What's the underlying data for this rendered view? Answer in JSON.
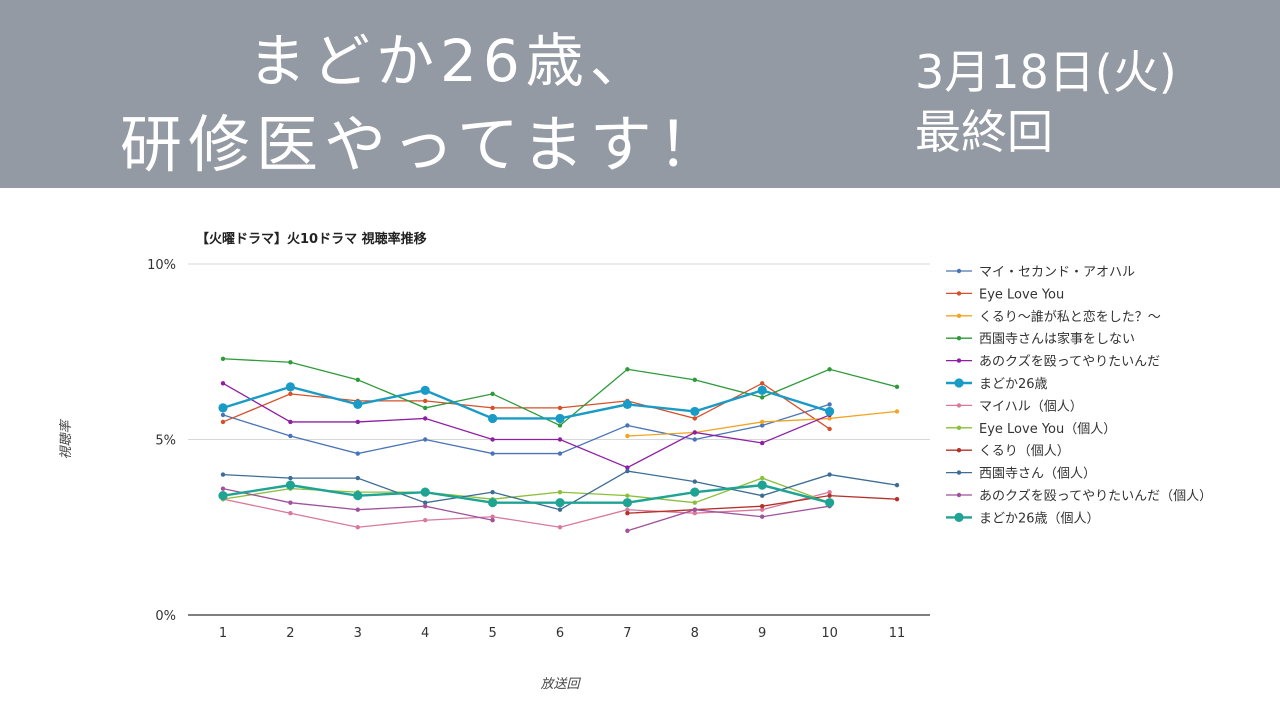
{
  "header": {
    "title_line1": "まどか26歳、",
    "title_line2": "研修医やってます！",
    "date": "3月18日(火)",
    "final": "最終回"
  },
  "chart_data": {
    "type": "line",
    "title": "【火曜ドラマ】火10ドラマ 視聴率推移",
    "xlabel": "放送回",
    "ylabel": "視聴率",
    "categories": [
      1,
      2,
      3,
      4,
      5,
      6,
      7,
      8,
      9,
      10,
      11
    ],
    "y_ticks": [
      "0%",
      "5%",
      "10%"
    ],
    "ylim": [
      0,
      10
    ],
    "grid": true,
    "legend_position": "right",
    "series": [
      {
        "name": "マイ・セカンド・アオハル",
        "color": "#4a74b8",
        "values": [
          5.7,
          5.1,
          4.6,
          5.0,
          4.6,
          4.6,
          5.4,
          5.0,
          5.4,
          6.0,
          null
        ]
      },
      {
        "name": "Eye Love You",
        "color": "#d6502a",
        "values": [
          5.5,
          6.3,
          6.1,
          6.1,
          5.9,
          5.9,
          6.1,
          5.6,
          6.6,
          5.3,
          null
        ]
      },
      {
        "name": "くるり〜誰が私と恋をした？〜",
        "color": "#f0a524",
        "values": [
          null,
          null,
          null,
          null,
          null,
          null,
          5.1,
          5.2,
          5.5,
          5.6,
          5.8
        ]
      },
      {
        "name": "西園寺さんは家事をしない",
        "color": "#2e9a3a",
        "values": [
          7.3,
          7.2,
          6.7,
          5.9,
          6.3,
          5.4,
          7.0,
          6.7,
          6.2,
          7.0,
          6.5
        ]
      },
      {
        "name": "あのクズを殴ってやりたいんだ",
        "color": "#8e1fa3",
        "values": [
          6.6,
          5.5,
          5.5,
          5.6,
          5.0,
          5.0,
          4.2,
          5.2,
          4.9,
          5.7,
          null
        ]
      },
      {
        "name": "まどか26歳",
        "color": "#1a9bc6",
        "values": [
          5.9,
          6.5,
          6.0,
          6.4,
          5.6,
          5.6,
          6.0,
          5.8,
          6.4,
          5.8,
          null
        ],
        "emphasis": true
      },
      {
        "name": "マイハル（個人）",
        "color": "#d9789c",
        "values": [
          3.3,
          2.9,
          2.5,
          2.7,
          2.8,
          2.5,
          3.0,
          2.9,
          3.0,
          3.5,
          null
        ]
      },
      {
        "name": "Eye Love You（個人）",
        "color": "#8bbf3a",
        "values": [
          3.3,
          3.6,
          3.5,
          3.5,
          3.3,
          3.5,
          3.4,
          3.2,
          3.9,
          3.2,
          null
        ]
      },
      {
        "name": "くるり（個人）",
        "color": "#b4322a",
        "values": [
          null,
          null,
          null,
          null,
          null,
          null,
          2.9,
          3.0,
          3.1,
          3.4,
          3.3
        ]
      },
      {
        "name": "西園寺さん（個人）",
        "color": "#3d6d94",
        "values": [
          4.0,
          3.9,
          3.9,
          3.2,
          3.5,
          3.0,
          4.1,
          3.8,
          3.4,
          4.0,
          3.7
        ]
      },
      {
        "name": "あのクズを殴ってやりたいんだ（個人）",
        "color": "#a0529c",
        "values": [
          3.6,
          3.2,
          3.0,
          3.1,
          2.7,
          null,
          2.4,
          3.0,
          2.8,
          3.1,
          null
        ]
      },
      {
        "name": "まどか26歳（個人）",
        "color": "#1fa392",
        "values": [
          3.4,
          3.7,
          3.4,
          3.5,
          3.2,
          3.2,
          3.2,
          3.5,
          3.7,
          3.2,
          null
        ],
        "emphasis": true
      }
    ]
  }
}
